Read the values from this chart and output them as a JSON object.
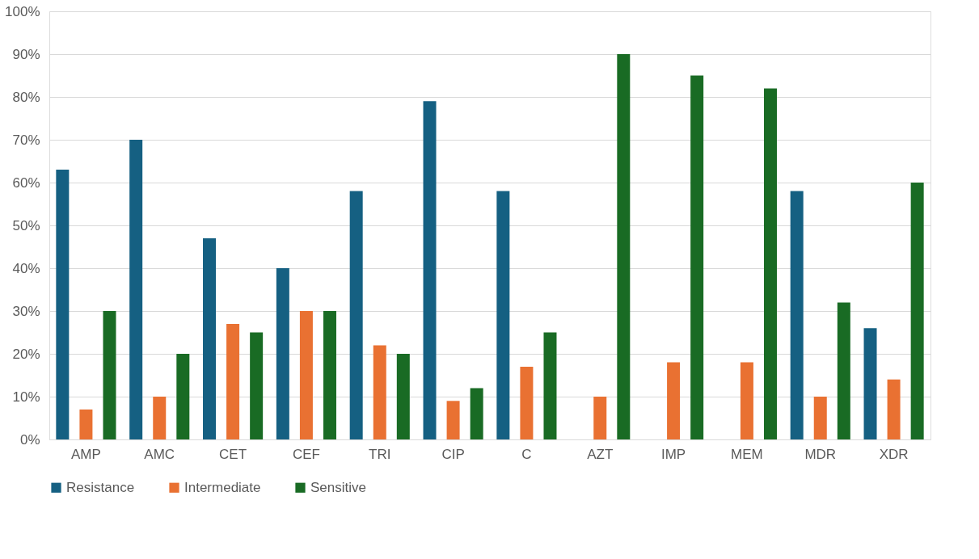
{
  "chart_data": {
    "type": "bar",
    "categories": [
      "AMP",
      "AMC",
      "CET",
      "CEF",
      "TRI",
      "CIP",
      "C",
      "AZT",
      "IMP",
      "MEM",
      "MDR",
      "XDR"
    ],
    "series": [
      {
        "name": "Resistance",
        "color": "#156082",
        "values": [
          63,
          70,
          47,
          40,
          58,
          79,
          58,
          0,
          0,
          0,
          58,
          26
        ]
      },
      {
        "name": "Intermediate",
        "color": "#e97132",
        "values": [
          7,
          10,
          27,
          30,
          22,
          9,
          17,
          10,
          18,
          18,
          10,
          14
        ]
      },
      {
        "name": "Sensitive",
        "color": "#196b24",
        "values": [
          30,
          20,
          25,
          30,
          20,
          12,
          25,
          90,
          85,
          82,
          32,
          60
        ]
      }
    ],
    "ylim": [
      0,
      100
    ],
    "yticks": [
      {
        "value": 0,
        "label": "0%"
      },
      {
        "value": 10,
        "label": "10%"
      },
      {
        "value": 20,
        "label": "20%"
      },
      {
        "value": 30,
        "label": "30%"
      },
      {
        "value": 40,
        "label": "40%"
      },
      {
        "value": 50,
        "label": "50%"
      },
      {
        "value": 60,
        "label": "60%"
      },
      {
        "value": 70,
        "label": "70%"
      },
      {
        "value": 80,
        "label": "80%"
      },
      {
        "value": 90,
        "label": "90%"
      },
      {
        "value": 100,
        "label": "100%"
      }
    ],
    "grid": "y",
    "legend": "bottom"
  }
}
